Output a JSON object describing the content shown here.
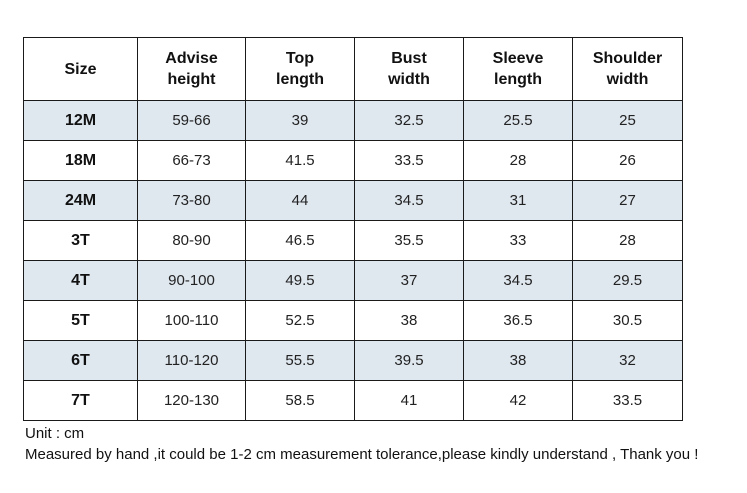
{
  "table": {
    "headers": [
      "Size",
      "Advise\nheight",
      "Top\nlength",
      "Bust\nwidth",
      "Sleeve\nlength",
      "Shoulder\nwidth"
    ],
    "rows": [
      [
        "12M",
        "59-66",
        "39",
        "32.5",
        "25.5",
        "25"
      ],
      [
        "18M",
        "66-73",
        "41.5",
        "33.5",
        "28",
        "26"
      ],
      [
        "24M",
        "73-80",
        "44",
        "34.5",
        "31",
        "27"
      ],
      [
        "3T",
        "80-90",
        "46.5",
        "35.5",
        "33",
        "28"
      ],
      [
        "4T",
        "90-100",
        "49.5",
        "37",
        "34.5",
        "29.5"
      ],
      [
        "5T",
        "100-110",
        "52.5",
        "38",
        "36.5",
        "30.5"
      ],
      [
        "6T",
        "110-120",
        "55.5",
        "39.5",
        "38",
        "32"
      ],
      [
        "7T",
        "120-130",
        "58.5",
        "41",
        "42",
        "33.5"
      ]
    ]
  },
  "notes": {
    "unit": "Unit : cm",
    "disclaimer": "Measured by hand ,it could be 1-2 cm measurement tolerance,please kindly understand , Thank you !"
  },
  "colors": {
    "shaded_row": "#dfe7ef",
    "border": "#1a1a1a"
  }
}
